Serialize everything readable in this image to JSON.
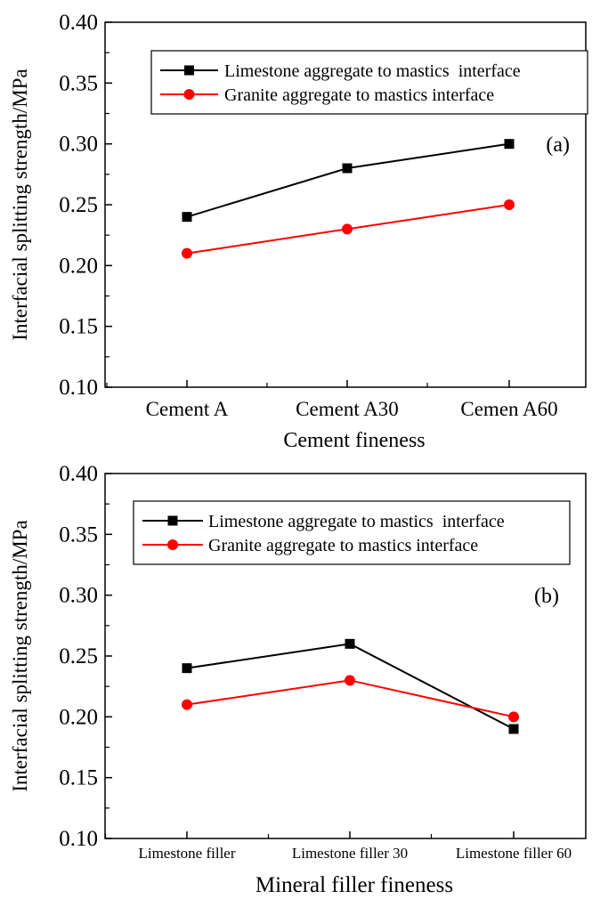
{
  "chart_data": [
    {
      "type": "line",
      "panel_label": "(a)",
      "categories": [
        "Cement A",
        "Cement A30",
        "Cemen A60"
      ],
      "xlabel": "Cement fineness",
      "ylabel": "Interfacial splitting strength/MPa",
      "ylim": [
        0.1,
        0.4
      ],
      "yticks": [
        "0.10",
        "0.15",
        "0.20",
        "0.25",
        "0.30",
        "0.35",
        "0.40"
      ],
      "legend_position": "top-right",
      "series": [
        {
          "name": "Limestone aggregate to mastics  interface",
          "color": "#000000",
          "marker": "square",
          "values": [
            0.24,
            0.28,
            0.3
          ]
        },
        {
          "name": "Granite aggregate to mastics interface",
          "color": "#ff0000",
          "marker": "circle",
          "values": [
            0.21,
            0.23,
            0.25
          ]
        }
      ]
    },
    {
      "type": "line",
      "panel_label": "(b)",
      "categories": [
        "Limestone filler",
        "Limestone filler 30",
        "Limestone filler 60"
      ],
      "xlabel": "Mineral filler fineness",
      "ylabel": "Interfacial splitting strength/MPa",
      "ylim": [
        0.1,
        0.4
      ],
      "yticks": [
        "0.10",
        "0.15",
        "0.20",
        "0.25",
        "0.30",
        "0.35",
        "0.40"
      ],
      "legend_position": "top-right",
      "series": [
        {
          "name": "Limestone aggregate to mastics  interface",
          "color": "#000000",
          "marker": "square",
          "values": [
            0.24,
            0.26,
            0.19
          ]
        },
        {
          "name": "Granite aggregate to mastics interface",
          "color": "#ff0000",
          "marker": "circle",
          "values": [
            0.21,
            0.23,
            0.2
          ]
        }
      ]
    }
  ]
}
